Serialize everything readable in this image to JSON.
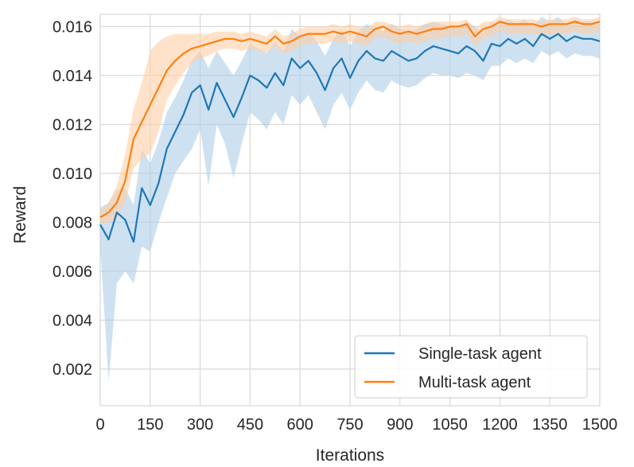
{
  "chart_data": {
    "type": "line",
    "title": "",
    "xlabel": "Iterations",
    "ylabel": "Reward",
    "xlim": [
      0,
      1500
    ],
    "ylim": [
      0.0005,
      0.0165
    ],
    "grid": true,
    "legend_position": "lower-right",
    "x_ticks": [
      0,
      150,
      300,
      450,
      600,
      750,
      900,
      1050,
      1200,
      1350,
      1500
    ],
    "x_tick_labels": [
      "0",
      "150",
      "300",
      "450",
      "600",
      "750",
      "900",
      "1050",
      "1200",
      "1350",
      "1500"
    ],
    "y_ticks": [
      0.002,
      0.004,
      0.006,
      0.008,
      0.01,
      0.012,
      0.014,
      0.016
    ],
    "y_tick_labels": [
      "0.002",
      "0.004",
      "0.006",
      "0.008",
      "0.010",
      "0.012",
      "0.014",
      "0.016"
    ],
    "x": [
      0,
      25,
      50,
      75,
      100,
      125,
      150,
      175,
      200,
      225,
      250,
      275,
      300,
      325,
      350,
      375,
      400,
      425,
      450,
      475,
      500,
      525,
      550,
      575,
      600,
      625,
      650,
      675,
      700,
      725,
      750,
      775,
      800,
      825,
      850,
      875,
      900,
      925,
      950,
      975,
      1000,
      1025,
      1050,
      1075,
      1100,
      1125,
      1150,
      1175,
      1200,
      1225,
      1250,
      1275,
      1300,
      1325,
      1350,
      1375,
      1400,
      1425,
      1450,
      1475,
      1500
    ],
    "series": [
      {
        "name": "Single-task agent",
        "color": "#1f77b4",
        "band_color": "#aecde7",
        "values": [
          0.0079,
          0.0073,
          0.0084,
          0.0081,
          0.0072,
          0.0094,
          0.0087,
          0.0096,
          0.011,
          0.0117,
          0.0124,
          0.0133,
          0.0136,
          0.0126,
          0.0137,
          0.013,
          0.0123,
          0.0131,
          0.014,
          0.0138,
          0.0135,
          0.0141,
          0.0136,
          0.0147,
          0.0143,
          0.0146,
          0.0141,
          0.0134,
          0.0143,
          0.0147,
          0.0139,
          0.0146,
          0.015,
          0.0147,
          0.0146,
          0.015,
          0.0148,
          0.0146,
          0.0147,
          0.015,
          0.0152,
          0.0151,
          0.015,
          0.0149,
          0.0152,
          0.015,
          0.0146,
          0.0153,
          0.0152,
          0.0155,
          0.0153,
          0.0155,
          0.0152,
          0.0157,
          0.0155,
          0.0157,
          0.0154,
          0.0156,
          0.0155,
          0.0155,
          0.0154
        ],
        "lower": [
          0.007,
          0.0015,
          0.0055,
          0.006,
          0.0055,
          0.007,
          0.0068,
          0.008,
          0.009,
          0.01,
          0.0105,
          0.011,
          0.0118,
          0.0095,
          0.012,
          0.0112,
          0.0098,
          0.0112,
          0.0125,
          0.0122,
          0.0118,
          0.0125,
          0.012,
          0.0132,
          0.0128,
          0.0132,
          0.0125,
          0.0118,
          0.0128,
          0.0133,
          0.0126,
          0.0133,
          0.0138,
          0.0134,
          0.0133,
          0.0138,
          0.0136,
          0.0135,
          0.0136,
          0.0139,
          0.0141,
          0.014,
          0.014,
          0.0139,
          0.0141,
          0.014,
          0.0138,
          0.0144,
          0.0144,
          0.0147,
          0.0145,
          0.0147,
          0.0145,
          0.015,
          0.0148,
          0.015,
          0.0147,
          0.0149,
          0.0148,
          0.0148,
          0.0147
        ],
        "upper": [
          0.0086,
          0.0088,
          0.0093,
          0.0094,
          0.0087,
          0.011,
          0.0104,
          0.0113,
          0.0125,
          0.0131,
          0.0138,
          0.0146,
          0.015,
          0.0143,
          0.015,
          0.0145,
          0.014,
          0.0146,
          0.0153,
          0.0151,
          0.0149,
          0.0154,
          0.015,
          0.0159,
          0.0156,
          0.0158,
          0.0154,
          0.0148,
          0.0155,
          0.0159,
          0.0152,
          0.0158,
          0.0161,
          0.0159,
          0.0158,
          0.0161,
          0.0159,
          0.0158,
          0.0159,
          0.0161,
          0.0162,
          0.0161,
          0.016,
          0.0159,
          0.0162,
          0.016,
          0.0157,
          0.0162,
          0.0161,
          0.0163,
          0.0161,
          0.0163,
          0.016,
          0.0164,
          0.0162,
          0.0164,
          0.0161,
          0.0163,
          0.0162,
          0.0162,
          0.0161
        ]
      },
      {
        "name": "Multi-task agent",
        "color": "#ff7f0e",
        "band_color": "#ffcfa5",
        "values": [
          0.0082,
          0.0084,
          0.0088,
          0.0097,
          0.0114,
          0.0121,
          0.0128,
          0.0135,
          0.0142,
          0.0146,
          0.0149,
          0.0151,
          0.0152,
          0.0153,
          0.0154,
          0.0155,
          0.0155,
          0.0154,
          0.0155,
          0.0154,
          0.0153,
          0.0156,
          0.0153,
          0.0154,
          0.0156,
          0.0157,
          0.0157,
          0.0157,
          0.0158,
          0.0157,
          0.0158,
          0.0157,
          0.0156,
          0.0159,
          0.016,
          0.0158,
          0.0157,
          0.0158,
          0.0157,
          0.0158,
          0.0159,
          0.0159,
          0.016,
          0.016,
          0.0161,
          0.0156,
          0.0159,
          0.016,
          0.0162,
          0.0161,
          0.0161,
          0.0161,
          0.0161,
          0.016,
          0.0161,
          0.0161,
          0.0161,
          0.0162,
          0.0161,
          0.0161,
          0.0162
        ],
        "lower": [
          0.0079,
          0.008,
          0.0082,
          0.0088,
          0.0102,
          0.0106,
          0.0108,
          0.0117,
          0.013,
          0.0136,
          0.0141,
          0.0145,
          0.0147,
          0.0148,
          0.015,
          0.0151,
          0.0151,
          0.015,
          0.0151,
          0.015,
          0.0149,
          0.0152,
          0.0149,
          0.015,
          0.0152,
          0.0153,
          0.0153,
          0.0153,
          0.0154,
          0.0153,
          0.0154,
          0.0153,
          0.0152,
          0.0155,
          0.0156,
          0.0154,
          0.0153,
          0.0154,
          0.0153,
          0.0154,
          0.0155,
          0.0155,
          0.0156,
          0.0156,
          0.0157,
          0.0152,
          0.0155,
          0.0156,
          0.0158,
          0.0157,
          0.0157,
          0.0157,
          0.0157,
          0.0156,
          0.0157,
          0.0157,
          0.0157,
          0.0158,
          0.0157,
          0.0157,
          0.0158
        ],
        "upper": [
          0.0085,
          0.0088,
          0.0095,
          0.0108,
          0.0126,
          0.0137,
          0.015,
          0.0154,
          0.0156,
          0.0157,
          0.0157,
          0.0157,
          0.0157,
          0.0157,
          0.0158,
          0.0158,
          0.0158,
          0.0157,
          0.0158,
          0.0157,
          0.0156,
          0.0159,
          0.0156,
          0.0157,
          0.0159,
          0.016,
          0.016,
          0.016,
          0.0161,
          0.016,
          0.0161,
          0.016,
          0.0159,
          0.0162,
          0.0162,
          0.0161,
          0.016,
          0.0161,
          0.016,
          0.0161,
          0.0162,
          0.0162,
          0.0162,
          0.0162,
          0.0163,
          0.0159,
          0.0162,
          0.0162,
          0.0164,
          0.0163,
          0.0163,
          0.0163,
          0.0163,
          0.0162,
          0.0163,
          0.0163,
          0.0163,
          0.0164,
          0.0163,
          0.0163,
          0.0164
        ]
      }
    ]
  }
}
